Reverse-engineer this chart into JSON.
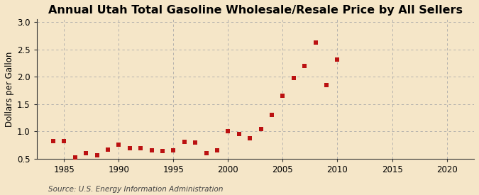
{
  "title": "Annual Utah Total Gasoline Wholesale/Resale Price by All Sellers",
  "ylabel": "Dollars per Gallon",
  "source": "Source: U.S. Energy Information Administration",
  "background_color": "#f5e6c8",
  "plot_bg_color": "#f5e6c8",
  "years": [
    1984,
    1985,
    1986,
    1987,
    1988,
    1989,
    1990,
    1991,
    1992,
    1993,
    1994,
    1995,
    1996,
    1997,
    1998,
    1999,
    2000,
    2001,
    2002,
    2003,
    2004,
    2005,
    2006,
    2007,
    2008,
    2009,
    2010
  ],
  "values": [
    0.83,
    0.82,
    0.52,
    0.6,
    0.57,
    0.67,
    0.76,
    0.7,
    0.69,
    0.66,
    0.64,
    0.66,
    0.81,
    0.8,
    0.61,
    0.66,
    1.01,
    0.95,
    0.88,
    1.05,
    1.31,
    1.65,
    1.98,
    2.2,
    2.63,
    1.85,
    2.32
  ],
  "marker_color": "#bb1111",
  "marker_size": 16,
  "xlim": [
    1982.5,
    2022.5
  ],
  "ylim": [
    0.5,
    3.05
  ],
  "xticks": [
    1985,
    1990,
    1995,
    2000,
    2005,
    2010,
    2015,
    2020
  ],
  "yticks": [
    0.5,
    1.0,
    1.5,
    2.0,
    2.5,
    3.0
  ],
  "title_fontsize": 11.5,
  "ylabel_fontsize": 8.5,
  "tick_fontsize": 8.5,
  "source_fontsize": 7.5
}
